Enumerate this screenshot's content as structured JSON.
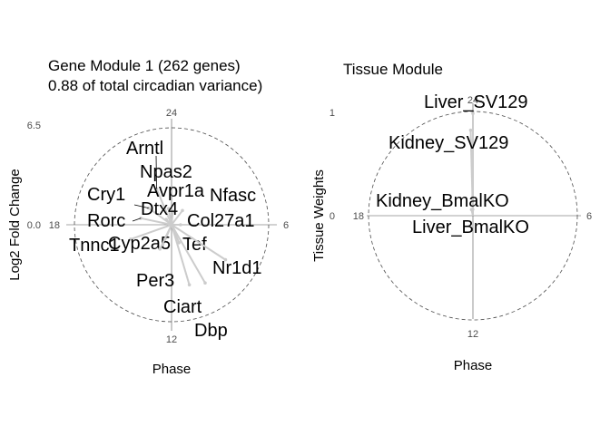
{
  "chart_data": [
    {
      "type": "scatter",
      "coord": "polar",
      "title": "Gene Module 1 (262 genes)",
      "subtitle": "0.88 of total circadian variance)",
      "xlabel": "Phase",
      "ylabel": "Log2 Fold Change",
      "phase_ticks": [
        "24",
        "6",
        "12",
        "18"
      ],
      "radius_ticks": [
        "6.5",
        "0.0"
      ],
      "rlim": [
        0,
        6.5
      ],
      "phase_range": [
        0,
        24
      ],
      "grid": true,
      "points": [
        {
          "label": "Arntl",
          "phase": 22.5,
          "amplitude": 2.6
        },
        {
          "label": "Npas2",
          "phase": 23.3,
          "amplitude": 1.1
        },
        {
          "label": "Cry1",
          "phase": 20.4,
          "amplitude": 1.9
        },
        {
          "label": "Avpr1a",
          "phase": 0.4,
          "amplitude": 0.9
        },
        {
          "label": "Nfasc",
          "phase": 2.5,
          "amplitude": 1.2
        },
        {
          "label": "Dtx4",
          "phase": 21.0,
          "amplitude": 0.5
        },
        {
          "label": "Rorc",
          "phase": 18.8,
          "amplitude": 2.1
        },
        {
          "label": "Col27a1",
          "phase": 6.0,
          "amplitude": 0.6
        },
        {
          "label": "Tnnc1",
          "phase": 16.7,
          "amplitude": 2.9
        },
        {
          "label": "Cyp2a5",
          "phase": 13.5,
          "amplitude": 1.6
        },
        {
          "label": "Tef",
          "phase": 10.5,
          "amplitude": 1.3
        },
        {
          "label": "Nr1d1",
          "phase": 8.2,
          "amplitude": 4.3
        },
        {
          "label": "Per3",
          "phase": 13.7,
          "amplitude": 1.8
        },
        {
          "label": "Ciart",
          "phase": 10.9,
          "amplitude": 4.2
        },
        {
          "label": "Dbp",
          "phase": 10.0,
          "amplitude": 4.5
        }
      ]
    },
    {
      "type": "scatter",
      "coord": "polar",
      "title": "Tissue Module",
      "xlabel": "Phase",
      "ylabel": "Tissue Weights",
      "phase_ticks": [
        "24",
        "6",
        "12",
        "18"
      ],
      "radius_ticks": [
        "1",
        "0"
      ],
      "rlim": [
        0,
        1
      ],
      "phase_range": [
        0,
        24
      ],
      "grid": true,
      "points": [
        {
          "label": "Liver_SV129",
          "phase": 0.0,
          "amplitude": 0.98
        },
        {
          "label": "Kidney_SV129",
          "phase": 23.9,
          "amplitude": 0.82
        },
        {
          "label": "Kidney_BmalKO",
          "phase": 23.9,
          "amplitude": 0.06
        },
        {
          "label": "Liver_BmalKO",
          "phase": 23.1,
          "amplitude": 0.06
        }
      ]
    }
  ]
}
